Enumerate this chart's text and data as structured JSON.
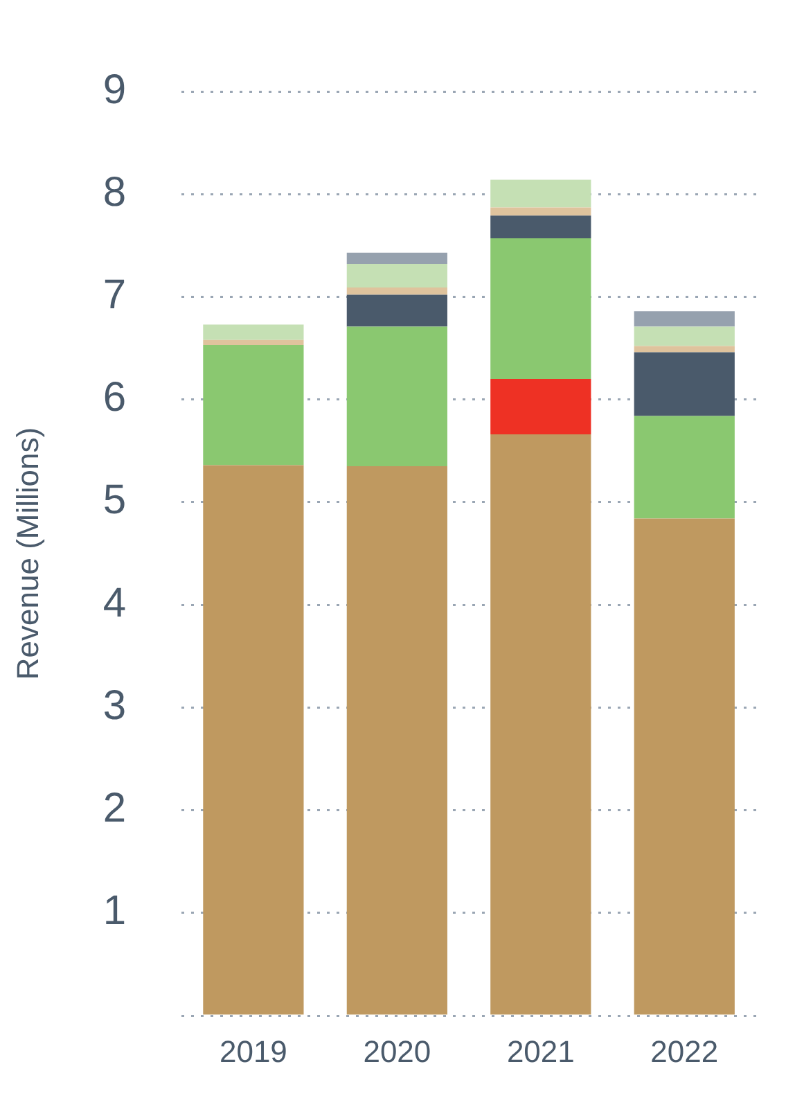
{
  "chart_data": {
    "type": "bar",
    "stacked": true,
    "ylabel": "Revenue (Millions)",
    "categories": [
      "2019",
      "2020",
      "2021",
      "2022"
    ],
    "series": [
      {
        "color": "#bf9960",
        "values": [
          5.36,
          5.35,
          5.66,
          4.84
        ]
      },
      {
        "color": "#ee3124",
        "values": [
          0,
          0,
          0.54,
          0
        ]
      },
      {
        "color": "#8ac870",
        "values": [
          1.17,
          1.36,
          1.37,
          1.0
        ]
      },
      {
        "color": "#4a5a6b",
        "values": [
          0,
          0.31,
          0.22,
          0.62
        ]
      },
      {
        "color": "#dfc39d",
        "values": [
          0.05,
          0.07,
          0.08,
          0.06
        ]
      },
      {
        "color": "#c5e0b4",
        "values": [
          0.15,
          0.23,
          0.27,
          0.19
        ]
      },
      {
        "color": "#96a1ae",
        "values": [
          0,
          0.11,
          0,
          0.15
        ]
      }
    ],
    "ylim": [
      0,
      9
    ],
    "yticks": [
      {
        "value": 0,
        "label": null
      },
      1,
      2,
      3,
      4,
      5,
      6,
      7,
      8,
      9
    ],
    "grid": "y",
    "legend": false
  }
}
